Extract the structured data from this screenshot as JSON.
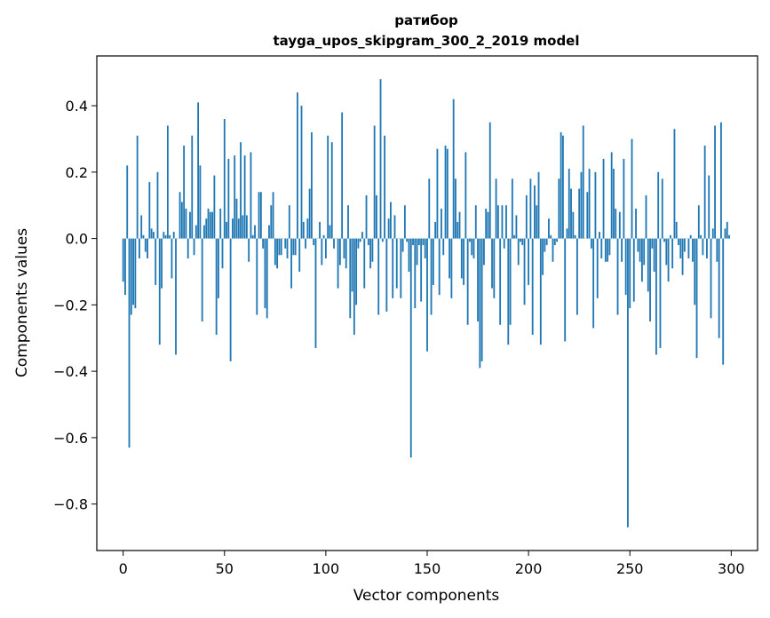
{
  "chart_data": {
    "type": "bar",
    "title": "ратибор",
    "subtitle": "tayga_upos_skipgram_300_2_2019 model",
    "xlabel": "Vector components",
    "ylabel": "Components values",
    "xlim": [
      -13,
      313
    ],
    "ylim": [
      -0.94,
      0.55
    ],
    "xticks": [
      0,
      50,
      100,
      150,
      200,
      250,
      300
    ],
    "xtick_labels": [
      "0",
      "50",
      "100",
      "150",
      "200",
      "250",
      "300"
    ],
    "yticks": [
      -0.8,
      -0.6,
      -0.4,
      -0.2,
      0.0,
      0.2,
      0.4
    ],
    "ytick_labels": [
      "−0.8",
      "−0.6",
      "−0.4",
      "−0.2",
      "0.0",
      "0.2",
      "0.4"
    ],
    "bar_color": "#1f77b4",
    "grid": false,
    "values": [
      -0.13,
      -0.17,
      0.22,
      -0.63,
      -0.23,
      -0.2,
      -0.21,
      0.31,
      -0.06,
      0.07,
      0.01,
      -0.04,
      -0.06,
      0.17,
      0.03,
      0.02,
      -0.14,
      0.2,
      -0.32,
      -0.15,
      0.02,
      0.01,
      0.34,
      0.01,
      -0.12,
      0.02,
      -0.35,
      0.0,
      0.14,
      0.11,
      0.28,
      0.09,
      -0.06,
      0.08,
      0.31,
      -0.05,
      0.04,
      0.41,
      0.22,
      -0.25,
      0.04,
      0.06,
      0.09,
      0.08,
      0.08,
      0.19,
      -0.29,
      -0.18,
      0.09,
      -0.09,
      0.36,
      0.05,
      0.24,
      -0.37,
      0.06,
      0.25,
      0.12,
      0.06,
      0.29,
      0.07,
      0.25,
      0.07,
      -0.07,
      0.26,
      0.01,
      0.04,
      -0.23,
      0.14,
      0.14,
      -0.03,
      -0.21,
      -0.24,
      0.04,
      0.1,
      0.14,
      -0.08,
      -0.09,
      -0.05,
      -0.05,
      0.0,
      -0.03,
      -0.06,
      0.1,
      -0.15,
      -0.05,
      -0.05,
      0.44,
      -0.1,
      0.4,
      0.05,
      -0.03,
      0.06,
      0.15,
      0.32,
      -0.02,
      -0.33,
      0.0,
      0.05,
      -0.08,
      0.01,
      -0.06,
      0.31,
      0.04,
      0.29,
      -0.03,
      0.0,
      -0.15,
      -0.08,
      0.38,
      -0.06,
      -0.09,
      0.1,
      -0.24,
      -0.16,
      -0.29,
      -0.2,
      -0.03,
      -0.01,
      0.02,
      -0.15,
      0.13,
      -0.02,
      -0.09,
      -0.07,
      0.34,
      0.13,
      -0.23,
      0.48,
      -0.01,
      0.31,
      -0.22,
      0.06,
      0.11,
      -0.18,
      0.07,
      -0.15,
      0.0,
      -0.18,
      -0.04,
      0.1,
      -0.01,
      -0.1,
      -0.66,
      -0.02,
      -0.21,
      -0.08,
      -0.02,
      -0.19,
      -0.02,
      -0.06,
      -0.34,
      0.18,
      -0.23,
      -0.14,
      0.05,
      0.27,
      -0.17,
      0.09,
      -0.05,
      0.28,
      0.27,
      -0.12,
      -0.18,
      0.42,
      0.18,
      0.05,
      0.08,
      -0.12,
      -0.14,
      0.26,
      -0.26,
      -0.01,
      -0.05,
      -0.06,
      0.1,
      -0.25,
      -0.39,
      -0.37,
      -0.08,
      0.09,
      0.08,
      0.35,
      -0.15,
      -0.18,
      0.18,
      0.1,
      -0.26,
      0.1,
      -0.03,
      0.1,
      -0.32,
      -0.26,
      0.18,
      0.01,
      0.07,
      -0.08,
      -0.01,
      -0.02,
      -0.2,
      0.13,
      -0.14,
      0.18,
      -0.29,
      0.16,
      0.1,
      0.2,
      -0.32,
      -0.11,
      -0.04,
      -0.02,
      0.06,
      0.01,
      -0.07,
      -0.02,
      -0.01,
      0.18,
      0.32,
      0.31,
      -0.31,
      0.03,
      0.21,
      0.15,
      0.08,
      0.01,
      -0.23,
      0.15,
      0.2,
      0.34,
      0.0,
      0.14,
      0.21,
      -0.03,
      -0.27,
      0.2,
      -0.18,
      0.02,
      -0.06,
      0.24,
      -0.07,
      -0.07,
      -0.05,
      0.26,
      0.21,
      0.09,
      -0.23,
      0.08,
      -0.07,
      0.24,
      -0.17,
      -0.87,
      -0.21,
      0.3,
      -0.19,
      0.09,
      -0.04,
      -0.07,
      -0.13,
      -0.08,
      0.13,
      -0.16,
      -0.25,
      -0.03,
      -0.1,
      -0.35,
      0.2,
      -0.33,
      0.18,
      -0.01,
      -0.08,
      -0.13,
      0.01,
      -0.09,
      0.33,
      0.05,
      -0.02,
      -0.06,
      -0.11,
      -0.04,
      0.0,
      -0.06,
      0.01,
      -0.07,
      -0.2,
      -0.36,
      0.1,
      0.01,
      -0.05,
      0.28,
      -0.06,
      0.19,
      -0.24,
      0.03,
      0.34,
      -0.07,
      -0.3,
      0.35,
      -0.38,
      0.03,
      0.05,
      0.01
    ]
  }
}
